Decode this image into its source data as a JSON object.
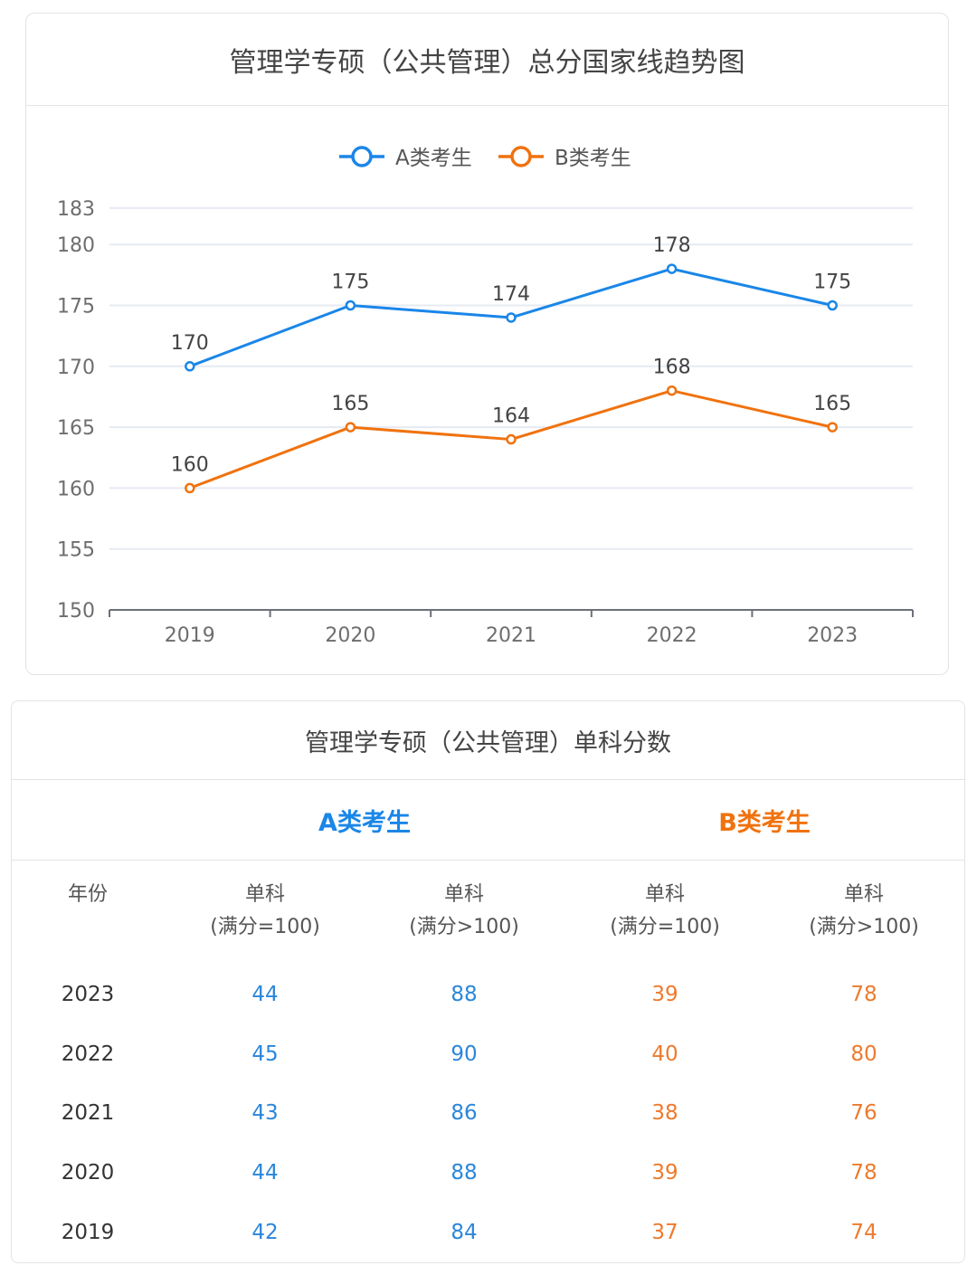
{
  "chart_card": {
    "title": "管理学专硕（公共管理）总分国家线趋势图"
  },
  "chart_data": {
    "type": "line",
    "title": "管理学专硕（公共管理）总分国家线趋势图",
    "categories": [
      "2019",
      "2020",
      "2021",
      "2022",
      "2023"
    ],
    "series": [
      {
        "name": "A类考生",
        "color": "#1a86e8",
        "values": [
          170,
          175,
          174,
          178,
          175
        ]
      },
      {
        "name": "B类考生",
        "color": "#f0720e",
        "values": [
          160,
          165,
          164,
          168,
          165
        ]
      }
    ],
    "y_ticks": [
      "150",
      "155",
      "160",
      "165",
      "170",
      "175",
      "180",
      "183"
    ],
    "ylim": [
      150,
      183
    ],
    "xlabel": "",
    "ylabel": "",
    "legend": "top-center",
    "grid": true,
    "data_labels": true
  },
  "table_card": {
    "title": "管理学专硕（公共管理）单科分数",
    "group_a": "A类考生",
    "group_b": "B类考生",
    "colors": {
      "a": "#2b86d9",
      "b": "#ee7a2d"
    },
    "headers": {
      "year": "年份",
      "c1_line1": "单科",
      "c1_line2": "(满分=100)",
      "c2_line1": "单科",
      "c2_line2": "(满分>100)",
      "c3_line1": "单科",
      "c3_line2": "(满分=100)",
      "c4_line1": "单科",
      "c4_line2": "(满分>100)"
    },
    "rows": [
      {
        "year": "2023",
        "a1": "44",
        "a2": "88",
        "b1": "39",
        "b2": "78"
      },
      {
        "year": "2022",
        "a1": "45",
        "a2": "90",
        "b1": "40",
        "b2": "80"
      },
      {
        "year": "2021",
        "a1": "43",
        "a2": "86",
        "b1": "38",
        "b2": "76"
      },
      {
        "year": "2020",
        "a1": "44",
        "a2": "88",
        "b1": "39",
        "b2": "78"
      },
      {
        "year": "2019",
        "a1": "42",
        "a2": "84",
        "b1": "37",
        "b2": "74"
      }
    ]
  }
}
